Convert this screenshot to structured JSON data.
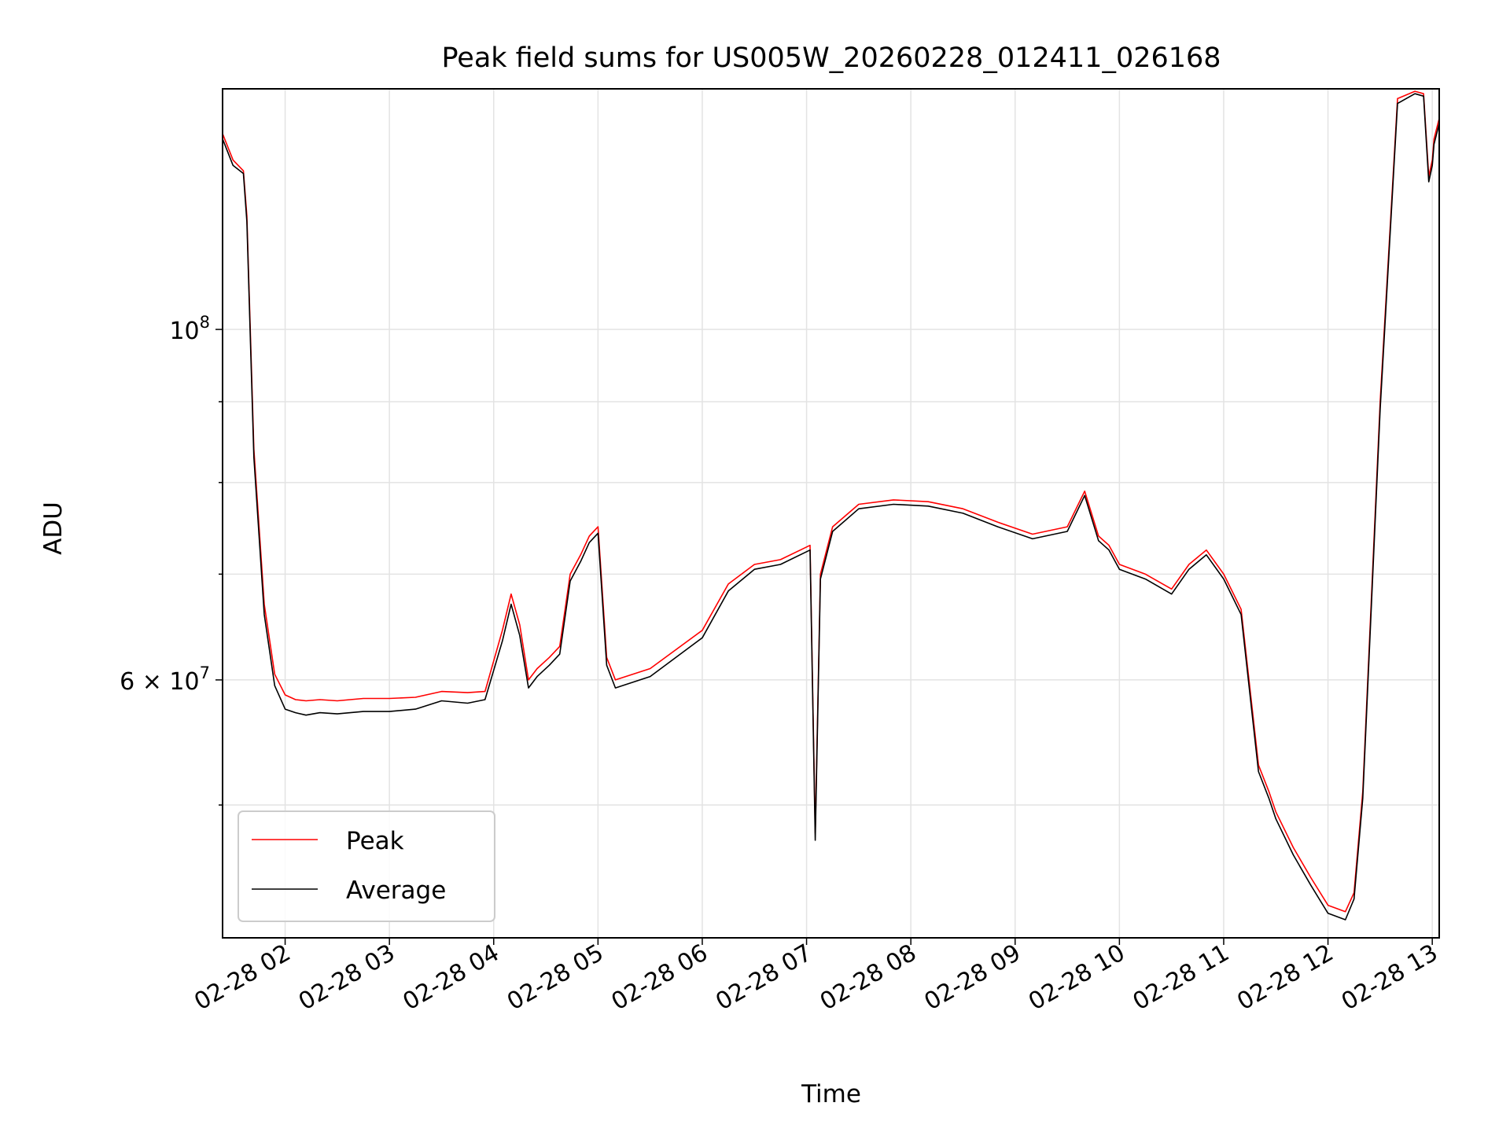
{
  "chart_data": {
    "type": "line",
    "title": "Peak field sums for US005W_20260228_012411_026168",
    "xlabel": "Time",
    "ylabel": "ADU",
    "y_scale": "log",
    "ylim": [
      41200000,
      142000000
    ],
    "xlim": [
      "2026-02-28 01:24",
      "2026-02-28 13:04"
    ],
    "grid": true,
    "legend_position": "lower-left",
    "x_ticks": [
      "2026-02-28 02:00",
      "2026-02-28 03:00",
      "2026-02-28 04:00",
      "2026-02-28 05:00",
      "2026-02-28 06:00",
      "2026-02-28 07:00",
      "2026-02-28 08:00",
      "2026-02-28 09:00",
      "2026-02-28 10:00",
      "2026-02-28 11:00",
      "2026-02-28 12:00",
      "2026-02-28 13:00"
    ],
    "x_tick_labels": [
      "02-28 02",
      "02-28 03",
      "02-28 04",
      "02-28 05",
      "02-28 06",
      "02-28 07",
      "02-28 08",
      "02-28 09",
      "02-28 10",
      "02-28 11",
      "02-28 12",
      "02-28 13"
    ],
    "y_major_ticks": [
      100000000,
      60000000
    ],
    "y_major_labels": [
      {
        "base": "10",
        "exp": "8",
        "mant": ""
      },
      {
        "base": "10",
        "exp": "7",
        "mant": "6 × "
      }
    ],
    "y_minor_ticks": [
      50000000,
      70000000,
      80000000,
      90000000
    ],
    "series": [
      {
        "name": "Peak",
        "color": "#ff0000",
        "x": [
          "2026-02-28 01:24",
          "2026-02-28 01:30",
          "2026-02-28 01:36",
          "2026-02-28 01:38",
          "2026-02-28 01:42",
          "2026-02-28 01:48",
          "2026-02-28 01:54",
          "2026-02-28 02:00",
          "2026-02-28 02:06",
          "2026-02-28 02:12",
          "2026-02-28 02:20",
          "2026-02-28 02:30",
          "2026-02-28 02:45",
          "2026-02-28 03:00",
          "2026-02-28 03:15",
          "2026-02-28 03:30",
          "2026-02-28 03:45",
          "2026-02-28 03:55",
          "2026-02-28 04:05",
          "2026-02-28 04:10",
          "2026-02-28 04:15",
          "2026-02-28 04:20",
          "2026-02-28 04:25",
          "2026-02-28 04:32",
          "2026-02-28 04:38",
          "2026-02-28 04:44",
          "2026-02-28 04:50",
          "2026-02-28 04:55",
          "2026-02-28 05:00",
          "2026-02-28 05:05",
          "2026-02-28 05:10",
          "2026-02-28 05:30",
          "2026-02-28 06:00",
          "2026-02-28 06:15",
          "2026-02-28 06:30",
          "2026-02-28 06:45",
          "2026-02-28 07:02",
          "2026-02-28 07:05",
          "2026-02-28 07:08",
          "2026-02-28 07:15",
          "2026-02-28 07:30",
          "2026-02-28 07:50",
          "2026-02-28 08:10",
          "2026-02-28 08:30",
          "2026-02-28 08:50",
          "2026-02-28 09:10",
          "2026-02-28 09:30",
          "2026-02-28 09:40",
          "2026-02-28 09:48",
          "2026-02-28 09:54",
          "2026-02-28 10:00",
          "2026-02-28 10:15",
          "2026-02-28 10:30",
          "2026-02-28 10:40",
          "2026-02-28 10:50",
          "2026-02-28 11:00",
          "2026-02-28 11:10",
          "2026-02-28 11:20",
          "2026-02-28 11:26",
          "2026-02-28 11:30",
          "2026-02-28 11:40",
          "2026-02-28 11:50",
          "2026-02-28 12:00",
          "2026-02-28 12:10",
          "2026-02-28 12:15",
          "2026-02-28 12:20",
          "2026-02-28 12:30",
          "2026-02-28 12:40",
          "2026-02-28 12:50",
          "2026-02-28 12:55",
          "2026-02-28 12:58",
          "2026-02-28 13:00",
          "2026-02-28 13:01",
          "2026-02-28 13:04"
        ],
        "values": [
          133000000,
          128000000,
          126000000,
          118000000,
          84000000,
          67000000,
          60500000,
          58700000,
          58300000,
          58200000,
          58300000,
          58200000,
          58400000,
          58400000,
          58500000,
          59000000,
          58900000,
          59000000,
          64500000,
          68000000,
          65000000,
          60000000,
          61000000,
          62000000,
          63000000,
          70000000,
          72000000,
          74000000,
          75000000,
          62000000,
          60000000,
          61000000,
          64500000,
          69000000,
          71000000,
          71500000,
          73000000,
          48000000,
          70000000,
          75000000,
          77500000,
          78000000,
          77800000,
          77000000,
          75500000,
          74200000,
          75000000,
          79000000,
          74000000,
          73000000,
          71000000,
          70000000,
          68500000,
          71000000,
          72500000,
          70000000,
          66500000,
          53000000,
          51000000,
          49500000,
          47000000,
          45000000,
          43200000,
          42800000,
          44000000,
          51000000,
          90000000,
          140000000,
          141500000,
          141000000,
          125000000,
          128000000,
          132000000,
          136000000
        ]
      },
      {
        "name": "Average",
        "color": "#000000",
        "x": [
          "2026-02-28 01:24",
          "2026-02-28 01:30",
          "2026-02-28 01:36",
          "2026-02-28 01:38",
          "2026-02-28 01:42",
          "2026-02-28 01:48",
          "2026-02-28 01:54",
          "2026-02-28 02:00",
          "2026-02-28 02:06",
          "2026-02-28 02:12",
          "2026-02-28 02:20",
          "2026-02-28 02:30",
          "2026-02-28 02:45",
          "2026-02-28 03:00",
          "2026-02-28 03:15",
          "2026-02-28 03:30",
          "2026-02-28 03:45",
          "2026-02-28 03:55",
          "2026-02-28 04:05",
          "2026-02-28 04:10",
          "2026-02-28 04:15",
          "2026-02-28 04:20",
          "2026-02-28 04:25",
          "2026-02-28 04:32",
          "2026-02-28 04:38",
          "2026-02-28 04:44",
          "2026-02-28 04:50",
          "2026-02-28 04:55",
          "2026-02-28 05:00",
          "2026-02-28 05:05",
          "2026-02-28 05:10",
          "2026-02-28 05:30",
          "2026-02-28 06:00",
          "2026-02-28 06:15",
          "2026-02-28 06:30",
          "2026-02-28 06:45",
          "2026-02-28 07:02",
          "2026-02-28 07:05",
          "2026-02-28 07:08",
          "2026-02-28 07:15",
          "2026-02-28 07:30",
          "2026-02-28 07:50",
          "2026-02-28 08:10",
          "2026-02-28 08:30",
          "2026-02-28 08:50",
          "2026-02-28 09:10",
          "2026-02-28 09:30",
          "2026-02-28 09:40",
          "2026-02-28 09:48",
          "2026-02-28 09:54",
          "2026-02-28 10:00",
          "2026-02-28 10:15",
          "2026-02-28 10:30",
          "2026-02-28 10:40",
          "2026-02-28 10:50",
          "2026-02-28 11:00",
          "2026-02-28 11:10",
          "2026-02-28 11:20",
          "2026-02-28 11:26",
          "2026-02-28 11:30",
          "2026-02-28 11:40",
          "2026-02-28 11:50",
          "2026-02-28 12:00",
          "2026-02-28 12:10",
          "2026-02-28 12:15",
          "2026-02-28 12:20",
          "2026-02-28 12:30",
          "2026-02-28 12:40",
          "2026-02-28 12:50",
          "2026-02-28 12:55",
          "2026-02-28 12:58",
          "2026-02-28 13:00",
          "2026-02-28 13:01",
          "2026-02-28 13:04"
        ],
        "values": [
          132000000,
          127000000,
          125500000,
          117000000,
          83000000,
          66000000,
          59500000,
          57500000,
          57200000,
          57000000,
          57200000,
          57100000,
          57300000,
          57300000,
          57500000,
          58200000,
          58000000,
          58300000,
          63500000,
          67000000,
          64000000,
          59300000,
          60300000,
          61300000,
          62300000,
          69300000,
          71300000,
          73300000,
          74300000,
          61300000,
          59300000,
          60300000,
          63800000,
          68300000,
          70500000,
          71000000,
          72500000,
          47500000,
          69500000,
          74500000,
          77000000,
          77500000,
          77300000,
          76500000,
          75000000,
          73700000,
          74500000,
          78500000,
          73500000,
          72500000,
          70500000,
          69500000,
          68000000,
          70500000,
          72000000,
          69500000,
          66000000,
          52500000,
          50500000,
          49000000,
          46500000,
          44500000,
          42700000,
          42300000,
          43600000,
          50500000,
          89000000,
          139000000,
          141000000,
          140500000,
          124000000,
          127000000,
          131000000,
          135000000
        ]
      }
    ]
  }
}
